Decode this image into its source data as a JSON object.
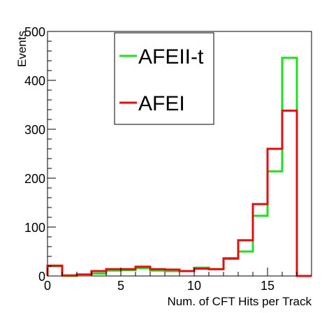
{
  "chart_data": {
    "type": "histogram",
    "xlabel": "Num. of CFT Hits per Track",
    "ylabel": "Events",
    "xlim": [
      0,
      18
    ],
    "ylim": [
      0,
      500
    ],
    "x_ticks": [
      0,
      5,
      10,
      15
    ],
    "y_ticks": [
      0,
      100,
      200,
      300,
      400,
      500
    ],
    "bin_edges": [
      0,
      1,
      2,
      3,
      4,
      5,
      6,
      7,
      8,
      9,
      10,
      11,
      12,
      13,
      14,
      15,
      16,
      17,
      18
    ],
    "series": [
      {
        "name": "AFEII-t",
        "color": "#22dd22",
        "values": [
          20,
          0,
          2,
          5,
          11,
          12,
          16,
          11,
          10,
          10,
          17,
          14,
          35,
          50,
          123,
          214,
          446,
          0
        ]
      },
      {
        "name": "AFEI",
        "color": "#dd1111",
        "values": [
          21,
          1,
          3,
          10,
          14,
          14,
          19,
          14,
          13,
          10,
          15,
          14,
          36,
          73,
          147,
          260,
          338,
          0
        ]
      }
    ],
    "legend_position": "top-center"
  }
}
